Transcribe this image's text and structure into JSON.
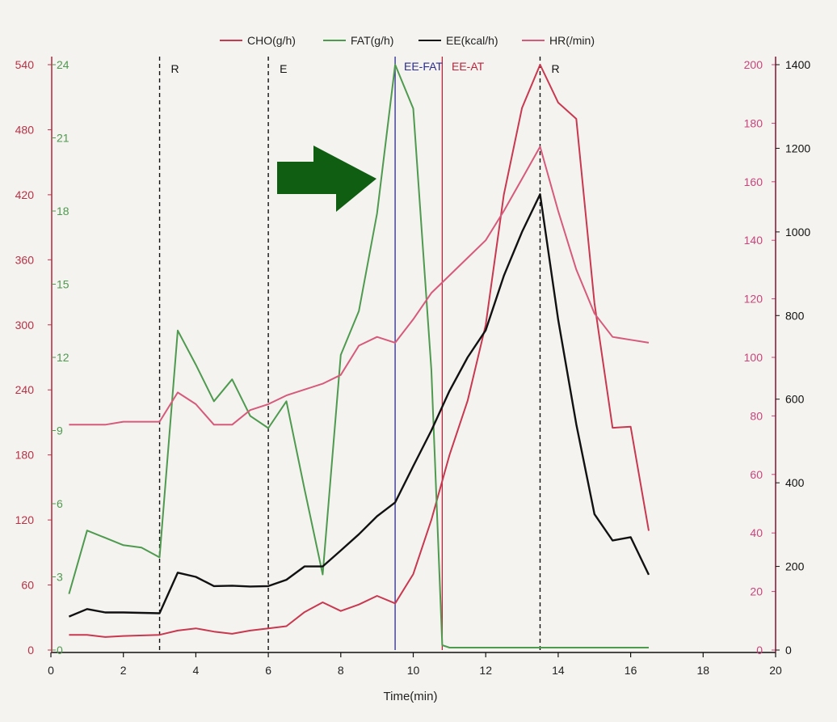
{
  "colors": {
    "cho": "#c8384f",
    "fat": "#4e9a4e",
    "ee": "#111111",
    "hr": "#d65a7a",
    "ee_fat_line": "#2c2c8c",
    "ee_at_line": "#b5263d",
    "arrow": "#0f5e12",
    "axis_cho": "#b83245",
    "axis_fat": "#4e9a4e",
    "axis_hr": "#c8457a",
    "axis_ee": "#8a1f3e"
  },
  "chart_data": {
    "type": "line",
    "xlabel": "Time(min)",
    "xlim": [
      0,
      20
    ],
    "xticks": [
      0,
      2,
      4,
      6,
      8,
      10,
      12,
      14,
      16,
      18,
      20
    ],
    "legend": [
      "CHO(g/h)",
      "FAT(g/h)",
      "EE(kcal/h)",
      "HR(/min)"
    ],
    "legend_position": "top-center",
    "axes": {
      "cho": {
        "ylim": [
          0,
          540
        ],
        "ticks": [
          0,
          60,
          120,
          180,
          240,
          300,
          360,
          420,
          480,
          540
        ],
        "side": "left-outer"
      },
      "fat": {
        "ylim": [
          0,
          24
        ],
        "ticks": [
          0,
          3,
          6,
          9,
          12,
          15,
          18,
          21,
          24
        ],
        "side": "left-inner"
      },
      "hr": {
        "ylim": [
          0,
          200
        ],
        "ticks": [
          0,
          20,
          40,
          60,
          80,
          100,
          120,
          140,
          160,
          180,
          200
        ],
        "side": "right-inner"
      },
      "ee": {
        "ylim": [
          0,
          1400
        ],
        "ticks": [
          0,
          200,
          400,
          600,
          800,
          1000,
          1200,
          1400
        ],
        "side": "right-outer"
      }
    },
    "phase_markers": [
      {
        "x": 3.0,
        "label": "R"
      },
      {
        "x": 6.0,
        "label": "E"
      },
      {
        "x": 13.5,
        "label": "R"
      }
    ],
    "threshold_markers": [
      {
        "x": 9.5,
        "label": "EE-FAT"
      },
      {
        "x": 10.8,
        "label": "EE-AT"
      }
    ],
    "series": [
      {
        "name": "CHO(g/h)",
        "axis": "cho",
        "points": [
          [
            0.5,
            14
          ],
          [
            1,
            14
          ],
          [
            1.5,
            12
          ],
          [
            2,
            13
          ],
          [
            3,
            14
          ],
          [
            3.5,
            18
          ],
          [
            4,
            20
          ],
          [
            4.5,
            17
          ],
          [
            5,
            15
          ],
          [
            5.5,
            18
          ],
          [
            6,
            20
          ],
          [
            6.5,
            22
          ],
          [
            7,
            35
          ],
          [
            7.5,
            44
          ],
          [
            8,
            36
          ],
          [
            8.5,
            42
          ],
          [
            9,
            50
          ],
          [
            9.5,
            43
          ],
          [
            10,
            70
          ],
          [
            10.5,
            120
          ],
          [
            11,
            180
          ],
          [
            11.5,
            230
          ],
          [
            12,
            300
          ],
          [
            12.5,
            420
          ],
          [
            13,
            500
          ],
          [
            13.5,
            540
          ],
          [
            14,
            505
          ],
          [
            14.5,
            490
          ],
          [
            15,
            320
          ],
          [
            15.5,
            205
          ],
          [
            16,
            206
          ],
          [
            16.5,
            110
          ]
        ]
      },
      {
        "name": "FAT(g/h)",
        "axis": "fat",
        "points": [
          [
            0.5,
            2.3
          ],
          [
            1,
            4.9
          ],
          [
            1.5,
            4.6
          ],
          [
            2,
            4.3
          ],
          [
            2.5,
            4.2
          ],
          [
            3,
            3.8
          ],
          [
            3.5,
            13.1
          ],
          [
            4,
            11.7
          ],
          [
            4.5,
            10.2
          ],
          [
            5,
            11.1
          ],
          [
            5.5,
            9.6
          ],
          [
            6,
            9.1
          ],
          [
            6.5,
            10.2
          ],
          [
            7,
            6.6
          ],
          [
            7.5,
            3.1
          ],
          [
            8,
            12.1
          ],
          [
            8.5,
            13.9
          ],
          [
            9,
            17.9
          ],
          [
            9.5,
            24.0
          ],
          [
            10,
            22.2
          ],
          [
            10.5,
            11.5
          ],
          [
            10.8,
            0.2
          ],
          [
            11,
            0.1
          ],
          [
            12,
            0.1
          ],
          [
            13,
            0.1
          ],
          [
            14,
            0.1
          ],
          [
            15,
            0.1
          ],
          [
            16,
            0.1
          ],
          [
            16.5,
            0.1
          ]
        ]
      },
      {
        "name": "EE(kcal/h)",
        "axis": "ee",
        "points": [
          [
            0.5,
            80
          ],
          [
            1,
            98
          ],
          [
            1.5,
            90
          ],
          [
            2,
            90
          ],
          [
            3,
            88
          ],
          [
            3.5,
            185
          ],
          [
            4,
            175
          ],
          [
            4.5,
            153
          ],
          [
            5,
            154
          ],
          [
            5.5,
            152
          ],
          [
            6,
            153
          ],
          [
            6.5,
            168
          ],
          [
            7,
            200
          ],
          [
            7.5,
            200
          ],
          [
            8,
            238
          ],
          [
            8.5,
            277
          ],
          [
            9,
            320
          ],
          [
            9.5,
            353
          ],
          [
            10,
            440
          ],
          [
            10.5,
            525
          ],
          [
            11,
            620
          ],
          [
            11.5,
            700
          ],
          [
            12,
            765
          ],
          [
            12.5,
            895
          ],
          [
            13,
            1000
          ],
          [
            13.5,
            1090
          ],
          [
            14,
            790
          ],
          [
            14.5,
            540
          ],
          [
            15,
            325
          ],
          [
            15.5,
            262
          ],
          [
            16,
            270
          ],
          [
            16.5,
            180
          ]
        ]
      },
      {
        "name": "HR(/min)",
        "axis": "hr",
        "points": [
          [
            0.5,
            77
          ],
          [
            1,
            77
          ],
          [
            1.5,
            77
          ],
          [
            2,
            78
          ],
          [
            3,
            78
          ],
          [
            3.5,
            88
          ],
          [
            4,
            84
          ],
          [
            4.5,
            77
          ],
          [
            5,
            77
          ],
          [
            5.5,
            82
          ],
          [
            6,
            84
          ],
          [
            6.5,
            87
          ],
          [
            7,
            89
          ],
          [
            7.5,
            91
          ],
          [
            8,
            94
          ],
          [
            8.5,
            104
          ],
          [
            9,
            107
          ],
          [
            9.5,
            105
          ],
          [
            10,
            113
          ],
          [
            10.5,
            122
          ],
          [
            11,
            128
          ],
          [
            11.5,
            134
          ],
          [
            12,
            140
          ],
          [
            12.5,
            150
          ],
          [
            13,
            161
          ],
          [
            13.5,
            172
          ],
          [
            14,
            150
          ],
          [
            14.5,
            130
          ],
          [
            15,
            115
          ],
          [
            15.5,
            107
          ],
          [
            16,
            106
          ],
          [
            16.5,
            105
          ]
        ]
      }
    ]
  }
}
